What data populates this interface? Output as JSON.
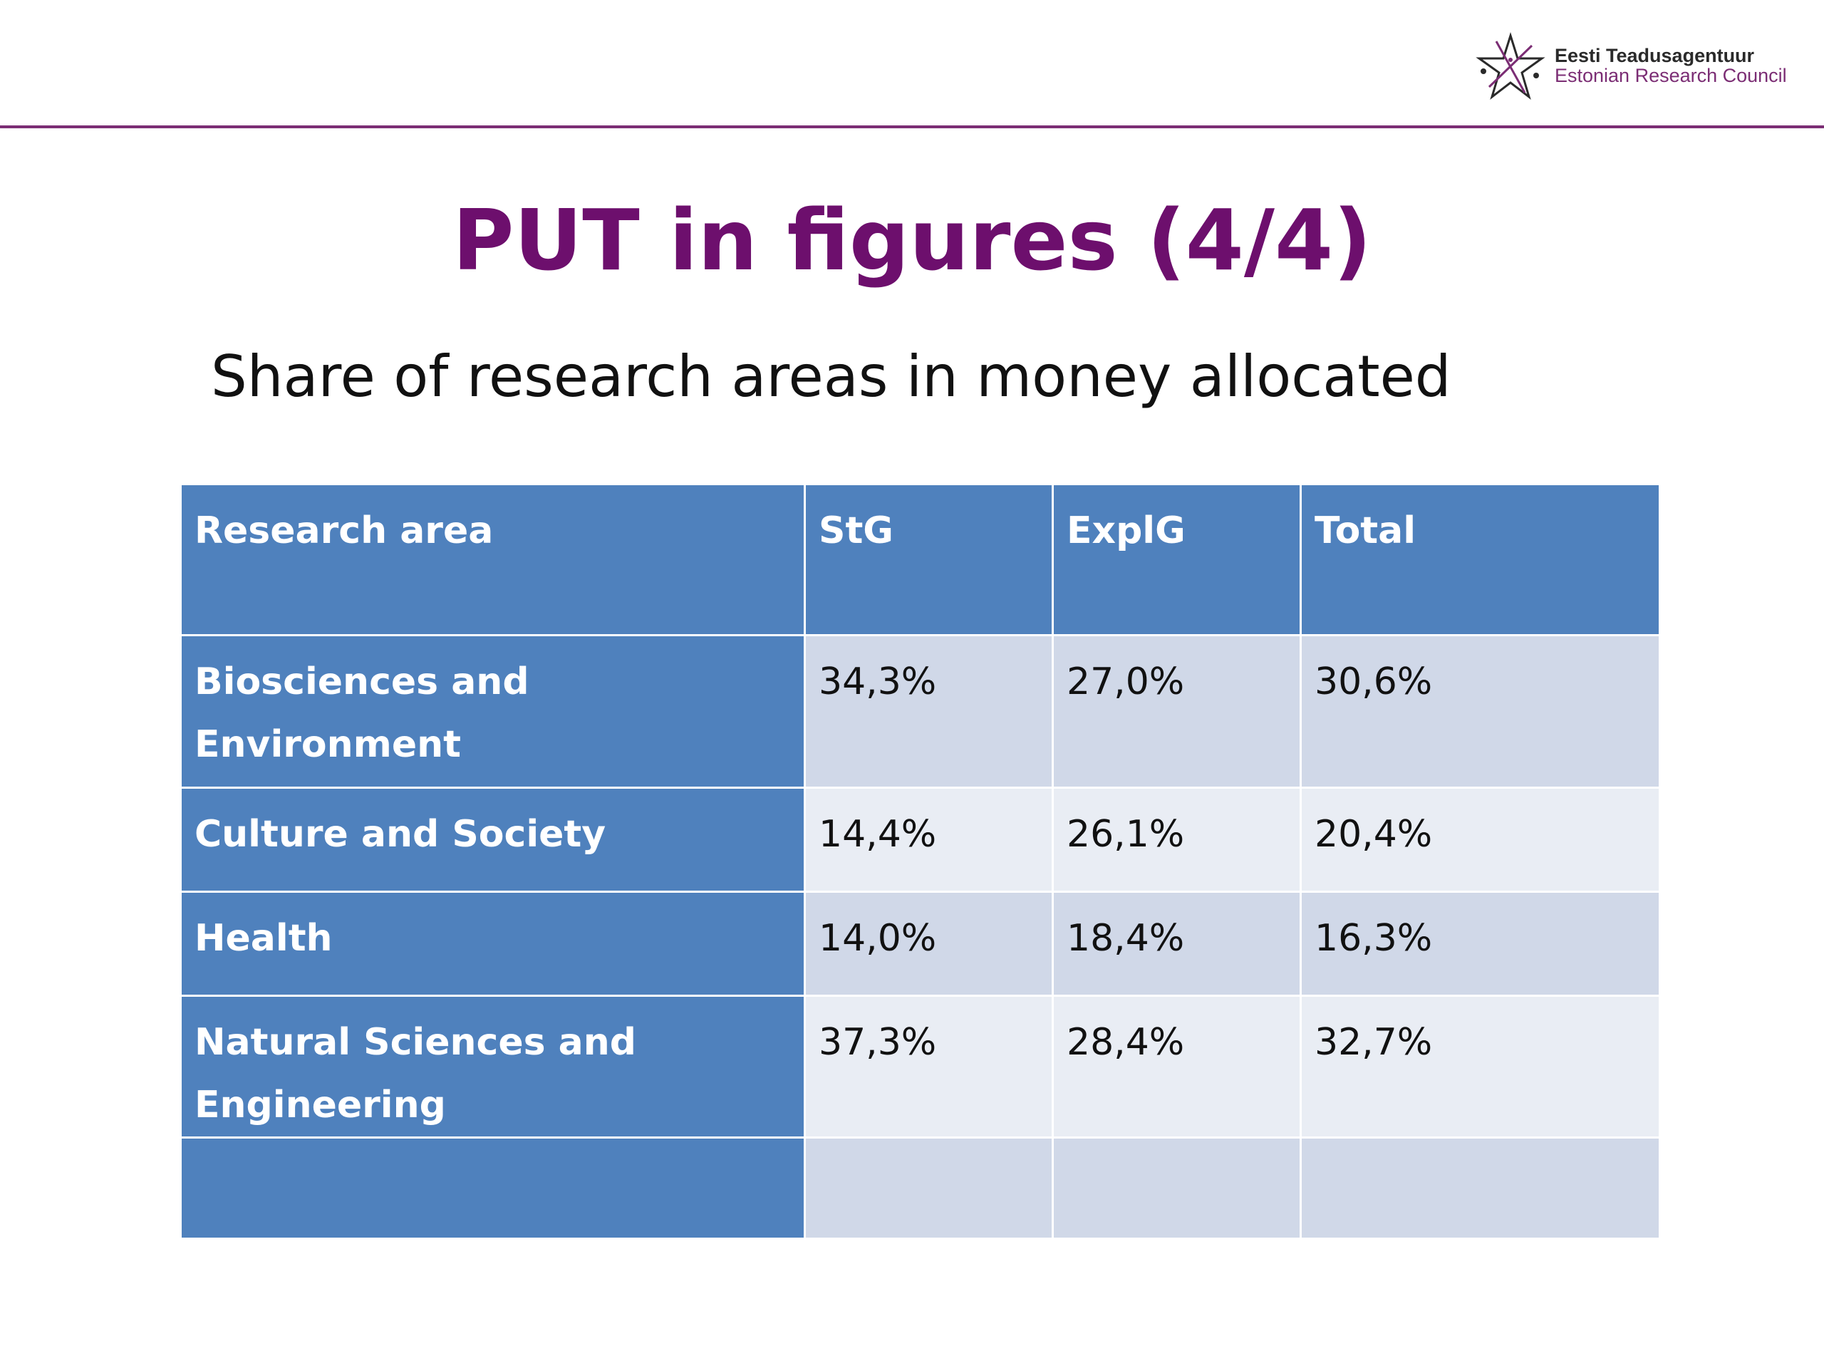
{
  "header": {
    "logo_line1": "Eesti Teadusagentuur",
    "logo_line2": "Estonian Research Council"
  },
  "slide": {
    "title": "PUT in figures (4/4)",
    "subtitle": "Share of research areas in money allocated"
  },
  "table": {
    "columns": [
      "Research area",
      "StG",
      "ExplG",
      "Total"
    ],
    "rows": [
      {
        "area": "Biosciences and Environment",
        "stg": "34,3%",
        "explg": "27,0%",
        "total": "30,6%"
      },
      {
        "area": "Culture and Society",
        "stg": "14,4%",
        "explg": "26,1%",
        "total": "20,4%"
      },
      {
        "area": "Health",
        "stg": "14,0%",
        "explg": "18,4%",
        "total": "16,3%"
      },
      {
        "area": "Natural Sciences and Engineering",
        "stg": "37,3%",
        "explg": "28,4%",
        "total": "32,7%"
      },
      {
        "area": "",
        "stg": "",
        "explg": "",
        "total": ""
      }
    ]
  },
  "colors": {
    "title": "#6d0f6d",
    "header_cell": "#4f81bd",
    "row_odd": "#d0d8e8",
    "row_even": "#e9edf4",
    "brand_line": "#7b2d74"
  }
}
